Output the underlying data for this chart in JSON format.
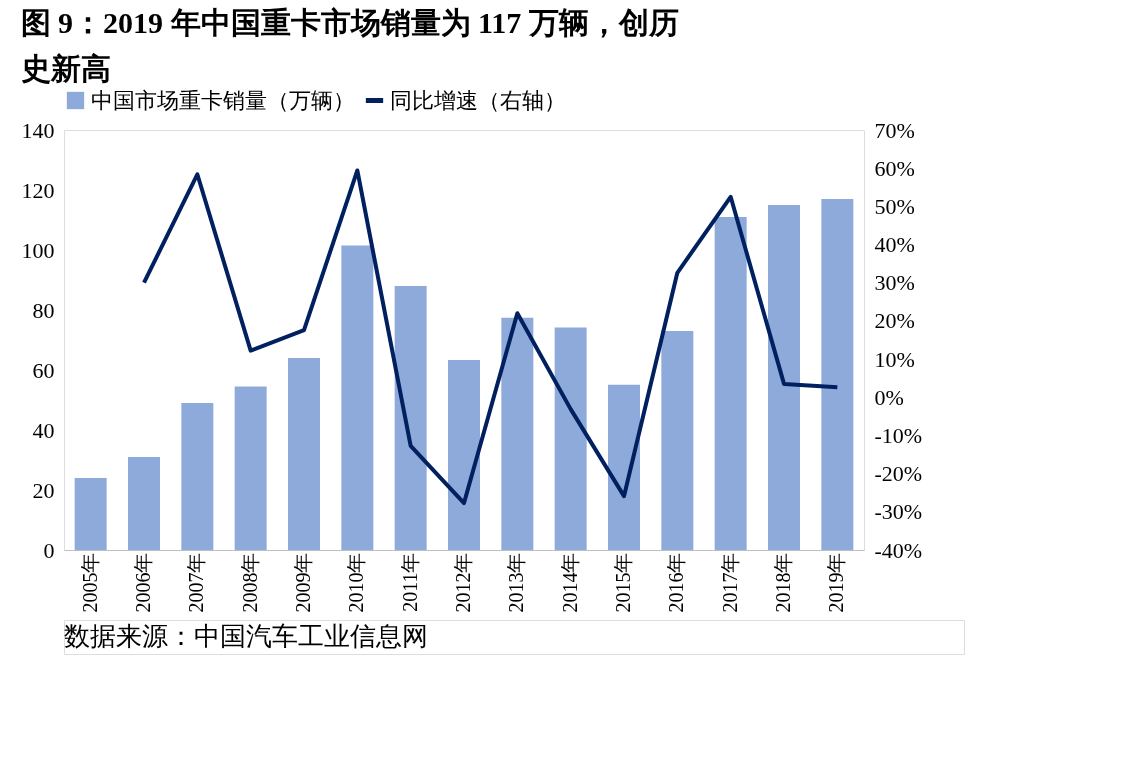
{
  "chart_data": {
    "type": "bar",
    "title": [
      "图 9：2019 年中国重卡市场销量为 117 万辆，创历",
      "史新高"
    ],
    "categories": [
      "2005年",
      "2006年",
      "2007年",
      "2008年",
      "2009年",
      "2010年",
      "2011年",
      "2012年",
      "2013年",
      "2014年",
      "2015年",
      "2016年",
      "2017年",
      "2018年",
      "2019年"
    ],
    "series": [
      {
        "name": "中国市场重卡销量（万辆）",
        "color": "#8eaadb",
        "values": [
          24,
          31,
          49,
          54.5,
          64,
          101.5,
          88,
          63.3,
          77.4,
          74.2,
          55.1,
          73,
          111,
          115,
          117
        ]
      },
      {
        "name": "同比增速（右轴）",
        "type": "line",
        "axis": "y2",
        "color": "#002060",
        "values": [
          null,
          30,
          58.4,
          12.2,
          17.6,
          59.4,
          -12.7,
          -27.7,
          22,
          -3.1,
          -25.9,
          32.6,
          52.5,
          3.5,
          2.6
        ]
      }
    ],
    "ylim": [
      0,
      140
    ],
    "yticks": [
      0,
      20,
      40,
      60,
      80,
      100,
      120,
      140
    ],
    "y2lim": [
      -40,
      70
    ],
    "y2ticks": [
      {
        "value": -40,
        "label": "-40%"
      },
      {
        "value": -30,
        "label": "-30%"
      },
      {
        "value": -20,
        "label": "-20%"
      },
      {
        "value": -10,
        "label": "-10%"
      },
      {
        "value": 0,
        "label": "0%"
      },
      {
        "value": 10,
        "label": "10%"
      },
      {
        "value": 20,
        "label": "20%"
      },
      {
        "value": 30,
        "label": "30%"
      },
      {
        "value": 40,
        "label": "40%"
      },
      {
        "value": 50,
        "label": "50%"
      },
      {
        "value": 60,
        "label": "60%"
      },
      {
        "value": 70,
        "label": "70%"
      }
    ],
    "grid": false,
    "legend": "top",
    "annotations": [
      "数据来源：中国汽车工业信息网"
    ]
  }
}
